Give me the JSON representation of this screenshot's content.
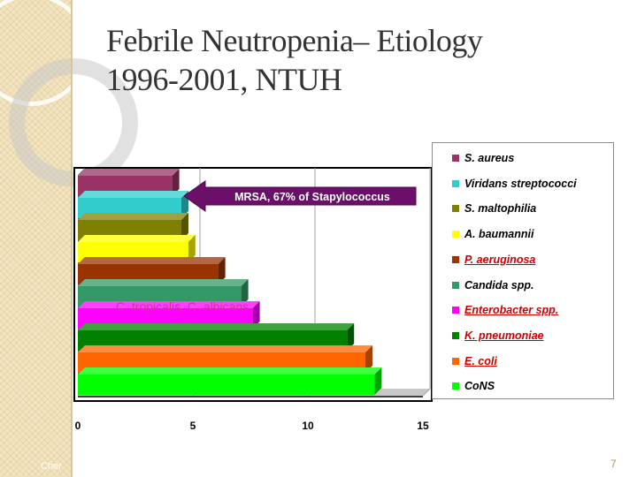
{
  "slide": {
    "title_line1": "Febrile Neutropenia– Etiology",
    "title_line2": "1996-2001, NTUH",
    "page_number": "7",
    "bottom_text": "Cher"
  },
  "chart_data": {
    "type": "bar",
    "orientation": "horizontal",
    "style": "3d",
    "categories": [
      "S. aureus",
      "Viridans streptococci",
      "S. maltophilia",
      "A. baumannii",
      "P. aeruginosa",
      "Candida spp.",
      "Enterobacter spp.",
      "K. pneumoniae",
      "E. coli",
      "CoNS"
    ],
    "values": [
      4.1,
      4.5,
      4.5,
      4.8,
      6.1,
      7.1,
      7.6,
      11.7,
      12.5,
      12.9
    ],
    "colors": [
      "#993366",
      "#33cccc",
      "#808000",
      "#ffff00",
      "#993300",
      "#339966",
      "#ff00ff",
      "#008000",
      "#ff6600",
      "#00ff00"
    ],
    "highlighted_legend_entries": [
      "P. aeruginosa",
      "Enterobacter spp.",
      "K. pneumoniae",
      "E. coli"
    ],
    "xlim": [
      0,
      15
    ],
    "xticks": [
      0,
      5,
      10,
      15
    ],
    "grid": "vertical",
    "legend_position": "right",
    "annotations": {
      "callout": "MRSA, 67% of Stapylococcus",
      "candida_note": "C. tropicalis, C. albicans"
    }
  }
}
